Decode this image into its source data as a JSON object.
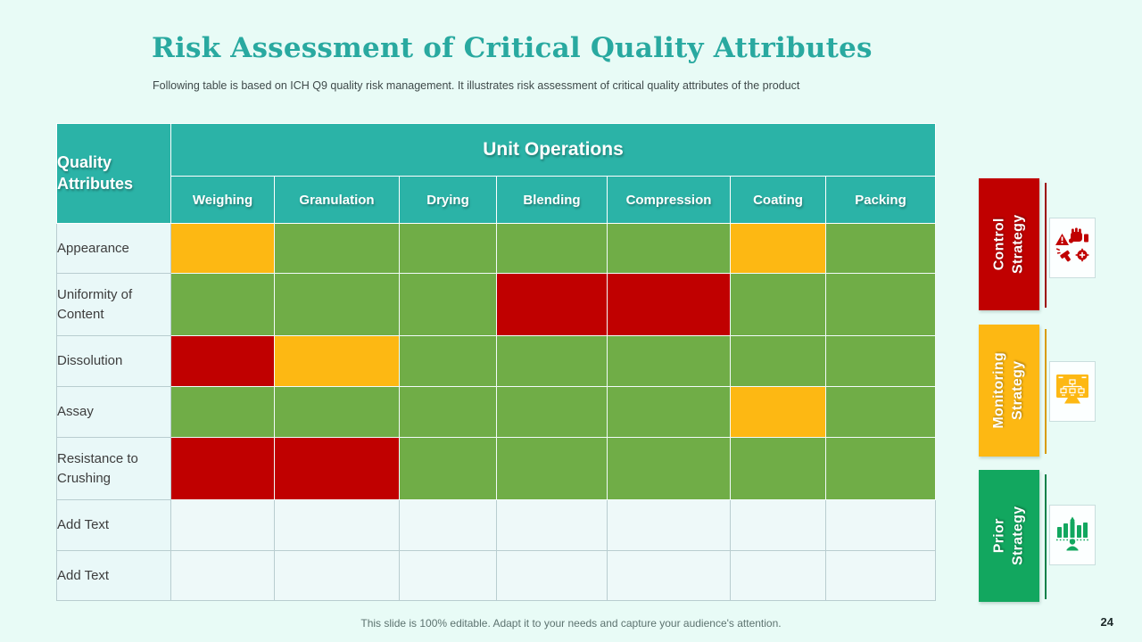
{
  "slide": {
    "title": "Risk Assessment of Critical Quality Attributes",
    "subtitle": "Following table is based on ICH Q9 quality risk management. It illustrates risk assessment of critical quality attributes of the product",
    "footer": "This slide is 100% editable. Adapt it to your needs and capture your audience's attention.",
    "page_number": "24"
  },
  "colors": {
    "header_teal": "#2bb3a7",
    "title_teal": "#29a9a0",
    "risk_low_green": "#70ad47",
    "risk_medium_yellow": "#fdb813",
    "risk_high_red": "#c00000",
    "prior_green": "#12a75f",
    "background_mint": "#e8fbf6"
  },
  "table": {
    "corner_header": "Quality Attributes",
    "group_header": "Unit Operations",
    "columns": [
      "Weighing",
      "Granulation",
      "Drying",
      "Blending",
      "Compression",
      "Coating",
      "Packing"
    ],
    "rows": [
      {
        "label": "Appearance",
        "levels": [
          "medium",
          "low",
          "low",
          "low",
          "low",
          "medium",
          "low"
        ]
      },
      {
        "label": "Uniformity of Content",
        "levels": [
          "low",
          "low",
          "low",
          "high",
          "high",
          "low",
          "low"
        ]
      },
      {
        "label": "Dissolution",
        "levels": [
          "high",
          "medium",
          "low",
          "low",
          "low",
          "low",
          "low"
        ]
      },
      {
        "label": "Assay",
        "levels": [
          "low",
          "low",
          "low",
          "low",
          "low",
          "medium",
          "low"
        ]
      },
      {
        "label": "Resistance to Crushing",
        "levels": [
          "high",
          "high",
          "low",
          "low",
          "low",
          "low",
          "low"
        ]
      },
      {
        "label": "Add Text",
        "levels": [
          "none",
          "none",
          "none",
          "none",
          "none",
          "none",
          "none"
        ]
      },
      {
        "label": "Add Text",
        "levels": [
          "none",
          "none",
          "none",
          "none",
          "none",
          "none",
          "none"
        ]
      }
    ]
  },
  "strategies": [
    {
      "lines": [
        "Control",
        "Strategy"
      ],
      "icon": "quality-inspection-icon",
      "color": "#c00000"
    },
    {
      "lines": [
        "Monitoring",
        "Strategy"
      ],
      "icon": "monitor-flowchart-icon",
      "color": "#fdb813"
    },
    {
      "lines": [
        "Prior",
        "Strategy"
      ],
      "icon": "growth-chart-person-icon",
      "color": "#12a75f"
    }
  ]
}
